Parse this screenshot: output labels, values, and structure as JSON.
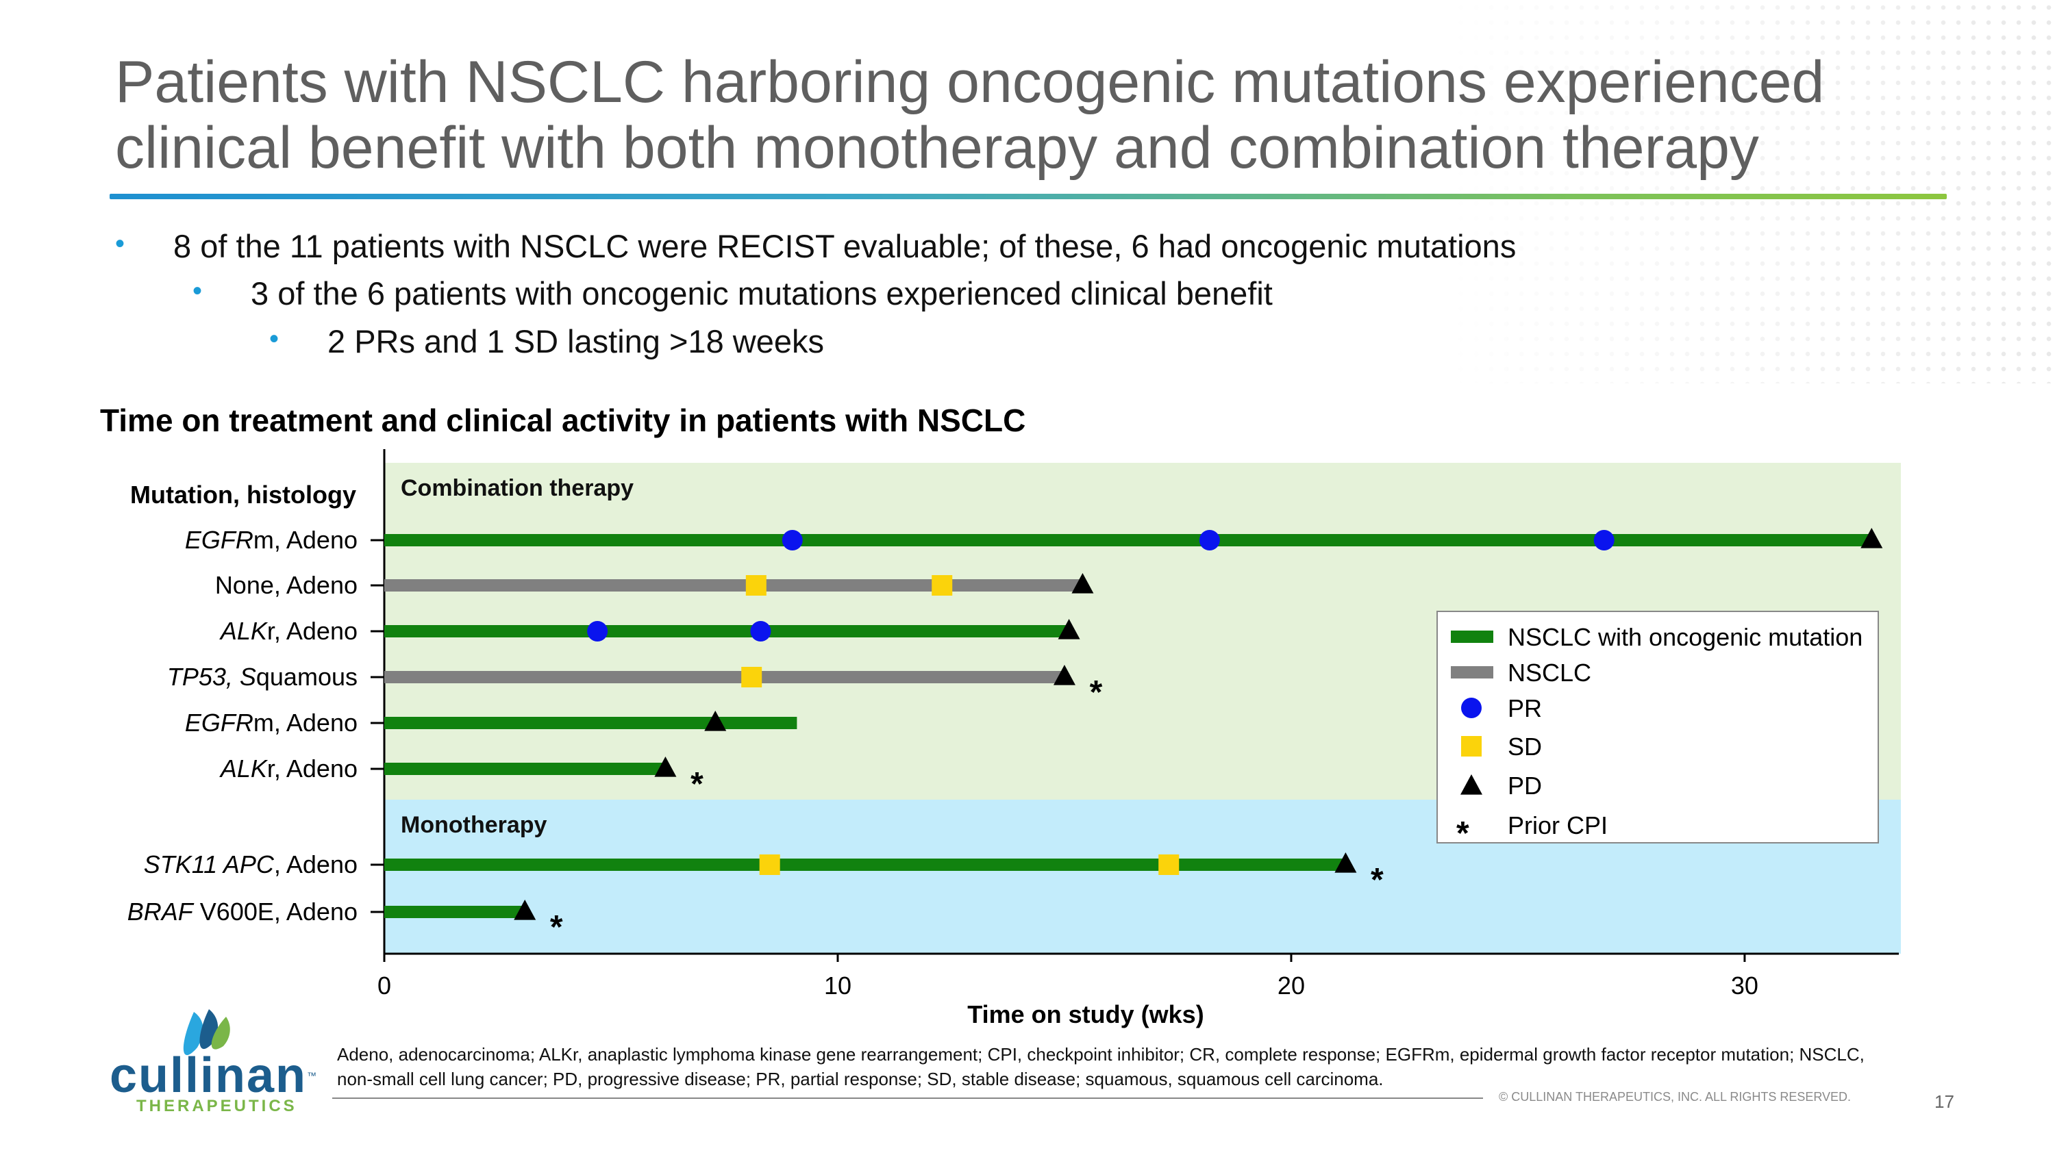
{
  "slide": {
    "title": "Patients with NSCLC harboring oncogenic mutations experienced clinical benefit with both monotherapy and combination therapy",
    "bullets": [
      "8 of the 11 patients with NSCLC were RECIST evaluable; of these, 6 had oncogenic mutations",
      "3 of the 6 patients with oncogenic mutations experienced clinical benefit",
      "2 PRs and 1 SD lasting >18 weeks"
    ],
    "bullet_glyph": "•",
    "footnote": "Adeno, adenocarcinoma; ALKr, anaplastic lymphoma kinase gene rearrangement; CPI, checkpoint inhibitor; CR, complete response; EGFRm, epidermal growth factor receptor mutation; NSCLC, non-small cell lung cancer; PD, progressive disease; PR, partial response; SD, stable disease; squamous, squamous cell carcinoma.",
    "copyright": "© CULLINAN THERAPEUTICS, INC. ALL RIGHTS RESERVED.",
    "page_number": "17",
    "logo": {
      "name": "cullinan",
      "tagline": "THERAPEUTICS",
      "tm": "™"
    }
  },
  "chart_data": {
    "type": "swimmer",
    "title": "Time on treatment and clinical activity in patients with NSCLC",
    "xlabel": "Time on study (wks)",
    "ylabel": "Mutation, histology",
    "xlim": [
      0,
      33.4
    ],
    "xticks": [
      0,
      10,
      20,
      30
    ],
    "colors": {
      "mutation": "#11820f",
      "nonmutation": "#808080",
      "pr": "#0a14ee",
      "sd": "#fbd30b",
      "pd": "#000000",
      "combination_bg": "#e5f2d9",
      "monotherapy_bg": "#c3ecfb"
    },
    "groups": [
      {
        "name": "Combination therapy",
        "patients": [
          {
            "gene": "EGFR",
            "label_rest": "m, Adeno",
            "type": "mutation",
            "duration": 32.8,
            "pr": [
              9.0,
              18.2,
              26.9
            ],
            "sd": [],
            "pd": 32.8,
            "prior_cpi": false
          },
          {
            "gene": "",
            "label_rest": "None, Adeno",
            "type": "nonmutation",
            "duration": 15.4,
            "pr": [],
            "sd": [
              8.2,
              12.3
            ],
            "pd": 15.4,
            "prior_cpi": false
          },
          {
            "gene": "ALK",
            "label_rest": "r, Adeno",
            "type": "mutation",
            "duration": 15.1,
            "pr": [
              4.7,
              8.3
            ],
            "sd": [],
            "pd": 15.1,
            "prior_cpi": false
          },
          {
            "gene": "TP53, S",
            "label_rest": "quamous",
            "type": "nonmutation",
            "duration": 15.0,
            "pr": [],
            "sd": [
              8.1
            ],
            "pd": 15.0,
            "prior_cpi": true
          },
          {
            "gene": "EGFR",
            "label_rest": "m, Adeno",
            "type": "mutation",
            "duration": 9.1,
            "pr": [],
            "sd": [],
            "pd": 7.3,
            "prior_cpi": false
          },
          {
            "gene": "ALK",
            "label_rest": "r, Adeno",
            "type": "mutation",
            "duration": 6.2,
            "pr": [],
            "sd": [],
            "pd": 6.2,
            "prior_cpi": true
          }
        ]
      },
      {
        "name": "Monotherapy",
        "patients": [
          {
            "gene": "STK11 APC",
            "label_rest": ", Adeno",
            "type": "mutation",
            "duration": 21.2,
            "pr": [],
            "sd": [
              8.5,
              17.3
            ],
            "pd": 21.2,
            "prior_cpi": true
          },
          {
            "gene": "BRAF",
            "label_rest": " V600E, Adeno",
            "type": "mutation",
            "duration": 3.1,
            "pr": [],
            "sd": [],
            "pd": 3.1,
            "prior_cpi": true
          }
        ]
      }
    ],
    "legend": {
      "position": "right",
      "entries": [
        {
          "key": "mutation",
          "label": "NSCLC with oncogenic mutation"
        },
        {
          "key": "nonmutation",
          "label": "NSCLC"
        },
        {
          "key": "pr",
          "label": "PR"
        },
        {
          "key": "sd",
          "label": "SD"
        },
        {
          "key": "pd",
          "label": "PD"
        },
        {
          "key": "cpi",
          "label": "Prior CPI"
        }
      ],
      "cpi_glyph": "*"
    }
  }
}
